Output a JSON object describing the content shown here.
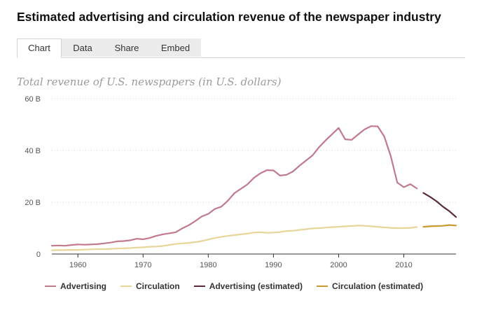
{
  "header": {
    "title": "Estimated advertising and circulation revenue of the newspaper industry"
  },
  "tabs": [
    {
      "label": "Chart",
      "active": true
    },
    {
      "label": "Data",
      "active": false
    },
    {
      "label": "Share",
      "active": false
    },
    {
      "label": "Embed",
      "active": false
    }
  ],
  "chart_data": {
    "type": "line",
    "title": "",
    "subtitle": "Total revenue of U.S. newspapers (in U.S. dollars)",
    "xlabel": "",
    "ylabel": "",
    "xlim": [
      1956,
      2018
    ],
    "ylim": [
      0,
      60
    ],
    "y_ticks": [
      {
        "value": 0,
        "label": "0"
      },
      {
        "value": 20,
        "label": "20 B"
      },
      {
        "value": 40,
        "label": "40 B"
      },
      {
        "value": 60,
        "label": "60 B"
      }
    ],
    "x_ticks": [
      {
        "value": 1960,
        "label": "1960"
      },
      {
        "value": 1970,
        "label": "1970"
      },
      {
        "value": 1980,
        "label": "1980"
      },
      {
        "value": 1990,
        "label": "1990"
      },
      {
        "value": 2000,
        "label": "2000"
      },
      {
        "value": 2010,
        "label": "2010"
      }
    ],
    "grid": "horizontal-dotted",
    "legend_position": "bottom",
    "series": [
      {
        "name": "Advertising",
        "color": "#c07a8c",
        "x": [
          1956,
          1957,
          1958,
          1959,
          1960,
          1961,
          1962,
          1963,
          1964,
          1965,
          1966,
          1967,
          1968,
          1969,
          1970,
          1971,
          1972,
          1973,
          1974,
          1975,
          1976,
          1977,
          1978,
          1979,
          1980,
          1981,
          1982,
          1983,
          1984,
          1985,
          1986,
          1987,
          1988,
          1989,
          1990,
          1991,
          1992,
          1993,
          1994,
          1995,
          1996,
          1997,
          1998,
          1999,
          2000,
          2001,
          2002,
          2003,
          2004,
          2005,
          2006,
          2007,
          2008,
          2009,
          2010,
          2011,
          2012
        ],
        "values": [
          3.2,
          3.3,
          3.2,
          3.5,
          3.7,
          3.6,
          3.7,
          3.8,
          4.1,
          4.4,
          4.9,
          5.0,
          5.3,
          5.9,
          5.7,
          6.2,
          7.0,
          7.6,
          8.0,
          8.4,
          9.9,
          11.1,
          12.7,
          14.5,
          15.5,
          17.4,
          18.3,
          20.6,
          23.5,
          25.2,
          26.9,
          29.4,
          31.2,
          32.4,
          32.3,
          30.3,
          30.6,
          31.9,
          34.1,
          36.1,
          38.1,
          41.3,
          43.9,
          46.3,
          48.7,
          44.3,
          44.1,
          46.2,
          48.2,
          49.4,
          49.3,
          45.4,
          37.8,
          27.6,
          25.8,
          27.0,
          25.3
        ]
      },
      {
        "name": "Circulation",
        "color": "#e7d59a",
        "x": [
          1956,
          1957,
          1958,
          1959,
          1960,
          1961,
          1962,
          1963,
          1964,
          1965,
          1966,
          1967,
          1968,
          1969,
          1970,
          1971,
          1972,
          1973,
          1974,
          1975,
          1976,
          1977,
          1978,
          1979,
          1980,
          1981,
          1982,
          1983,
          1984,
          1985,
          1986,
          1987,
          1988,
          1989,
          1990,
          1991,
          1992,
          1993,
          1994,
          1995,
          1996,
          1997,
          1998,
          1999,
          2000,
          2001,
          2002,
          2003,
          2004,
          2005,
          2006,
          2007,
          2008,
          2009,
          2010,
          2011,
          2012
        ],
        "values": [
          1.4,
          1.5,
          1.5,
          1.6,
          1.6,
          1.7,
          1.8,
          1.9,
          1.9,
          2.0,
          2.1,
          2.2,
          2.3,
          2.5,
          2.6,
          2.8,
          2.9,
          3.1,
          3.5,
          3.9,
          4.1,
          4.3,
          4.6,
          5.0,
          5.6,
          6.2,
          6.6,
          7.0,
          7.3,
          7.6,
          7.9,
          8.3,
          8.4,
          8.2,
          8.3,
          8.5,
          8.9,
          9.0,
          9.3,
          9.6,
          9.9,
          10.0,
          10.2,
          10.4,
          10.5,
          10.7,
          10.8,
          11.0,
          10.9,
          10.7,
          10.5,
          10.3,
          10.1,
          10.0,
          10.0,
          10.1,
          10.4
        ]
      },
      {
        "name": "Advertising (estimated)",
        "color": "#5a2a3c",
        "x": [
          2013,
          2014,
          2015,
          2016,
          2017,
          2018
        ],
        "values": [
          23.6,
          22.1,
          20.4,
          18.3,
          16.5,
          14.3
        ]
      },
      {
        "name": "Circulation (estimated)",
        "color": "#c99a2e",
        "x": [
          2013,
          2014,
          2015,
          2016,
          2017,
          2018
        ],
        "values": [
          10.5,
          10.7,
          10.8,
          10.9,
          11.2,
          11.0
        ]
      }
    ]
  }
}
